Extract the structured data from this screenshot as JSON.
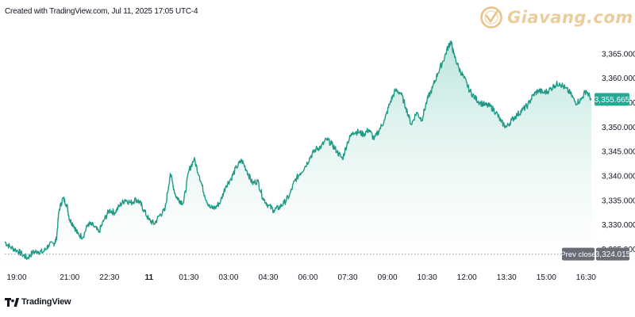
{
  "header": {
    "created_with": "Created with TradingView.com, Jul 11, 2025 17:05 UTC-4"
  },
  "watermark": {
    "brand": "Giavang.com"
  },
  "footer": {
    "brand": "TradingView"
  },
  "colors": {
    "line": "#1e9a86",
    "area_top": "#b5e2d9",
    "area_bottom": "#ffffff",
    "price_badge": "#22ab94",
    "prev_close_badge": "#6a6d78",
    "dotted": "#9aa0ab",
    "axis_text": "#131722",
    "watermark": "#e8c48a"
  },
  "chart_data": {
    "type": "area",
    "title": "",
    "xlabel": "",
    "ylabel": "",
    "ylim": [
      3321.2,
      3370.8
    ],
    "x_ticks": [
      "19:00",
      "21:00",
      "22:30",
      "11",
      "01:30",
      "03:00",
      "04:30",
      "06:00",
      "07:30",
      "09:00",
      "10:30",
      "12:00",
      "13:30",
      "15:00",
      "16:30"
    ],
    "x_tick_positions": [
      0,
      4,
      7,
      10,
      13,
      16,
      19,
      22,
      25,
      28,
      31,
      34,
      37,
      40,
      43
    ],
    "x_range": [
      -0.9,
      43.4
    ],
    "y_ticks": [
      3325,
      3330,
      3335,
      3340,
      3345,
      3350,
      3355,
      3360,
      3365
    ],
    "y_tick_labels": [
      "3,325.000",
      "3,330.000",
      "3,335.000",
      "3,340.000",
      "3,345.000",
      "3,350.000",
      "3,355.000",
      "3,360.000",
      "3,365.000"
    ],
    "last_price": 3355.665,
    "last_price_label": "3,355.665",
    "prev_close": 3324.015,
    "prev_close_label": "3,324.015",
    "prev_close_text": "Prev close",
    "series": [
      {
        "x": [
          -0.9,
          -0.5,
          0.0,
          0.4,
          0.8,
          1.2,
          1.6,
          2.0,
          2.4,
          2.8,
          3.0,
          3.2,
          3.5,
          3.8,
          4.0,
          4.3,
          4.6,
          5.0,
          5.4,
          5.8,
          6.2,
          6.6,
          7.0,
          7.4,
          7.8,
          8.2,
          8.6,
          9.0,
          9.3,
          9.6,
          10.0,
          10.4,
          10.8,
          11.2,
          11.6,
          12.0,
          12.3,
          12.6,
          13.0,
          13.4,
          13.8,
          14.2,
          14.6,
          15.0,
          15.4,
          15.8,
          16.2,
          16.6,
          17.0,
          17.4,
          17.8,
          18.2,
          18.6,
          19.0,
          19.4,
          19.8,
          20.2,
          20.6,
          21.0,
          21.4,
          21.8,
          22.2,
          22.6,
          23.0,
          23.4,
          23.8,
          24.2,
          24.6,
          25.0,
          25.4,
          25.8,
          26.2,
          26.6,
          27.0,
          27.4,
          27.8,
          28.2,
          28.6,
          29.0,
          29.4,
          29.8,
          30.2,
          30.6,
          31.0,
          31.4,
          31.8,
          32.2,
          32.6,
          32.8,
          33.0,
          33.4,
          33.8,
          34.2,
          34.6,
          35.0,
          35.4,
          35.8,
          36.2,
          36.6,
          37.0,
          37.4,
          37.8,
          38.2,
          38.6,
          39.0,
          39.4,
          39.8,
          40.2,
          40.6,
          41.0,
          41.4,
          41.8,
          42.2,
          42.6,
          43.0,
          43.4
        ],
        "y": [
          3326.5,
          3325.5,
          3324.8,
          3324.0,
          3323.2,
          3324.3,
          3324.6,
          3324.4,
          3325.8,
          3326.2,
          3327.0,
          3333.0,
          3335.5,
          3334.0,
          3331.0,
          3330.0,
          3328.2,
          3327.5,
          3330.2,
          3329.8,
          3328.5,
          3331.0,
          3333.0,
          3332.5,
          3334.0,
          3335.2,
          3334.5,
          3335.2,
          3334.6,
          3333.0,
          3331.0,
          3330.2,
          3332.0,
          3333.0,
          3340.5,
          3336.0,
          3335.0,
          3334.5,
          3341.0,
          3343.5,
          3340.0,
          3336.0,
          3333.5,
          3333.5,
          3334.8,
          3338.0,
          3339.5,
          3341.8,
          3343.2,
          3341.0,
          3338.5,
          3339.0,
          3335.5,
          3334.0,
          3333.0,
          3333.5,
          3334.5,
          3336.0,
          3339.0,
          3340.5,
          3342.0,
          3344.0,
          3345.5,
          3346.0,
          3347.5,
          3346.5,
          3345.0,
          3343.5,
          3347.0,
          3349.0,
          3349.0,
          3348.5,
          3349.5,
          3347.5,
          3349.5,
          3351.5,
          3355.0,
          3357.5,
          3357.0,
          3354.0,
          3350.5,
          3353.0,
          3351.5,
          3355.5,
          3358.0,
          3361.0,
          3363.5,
          3366.5,
          3367.5,
          3365.0,
          3362.0,
          3360.0,
          3357.5,
          3356.0,
          3355.0,
          3354.5,
          3354.2,
          3353.0,
          3351.0,
          3350.0,
          3351.5,
          3352.5,
          3353.5,
          3354.5,
          3356.5,
          3357.5,
          3357.0,
          3357.5,
          3358.5,
          3359.0,
          3358.0,
          3357.0,
          3355.0,
          3355.5,
          3357.5,
          3355.665
        ]
      }
    ]
  }
}
